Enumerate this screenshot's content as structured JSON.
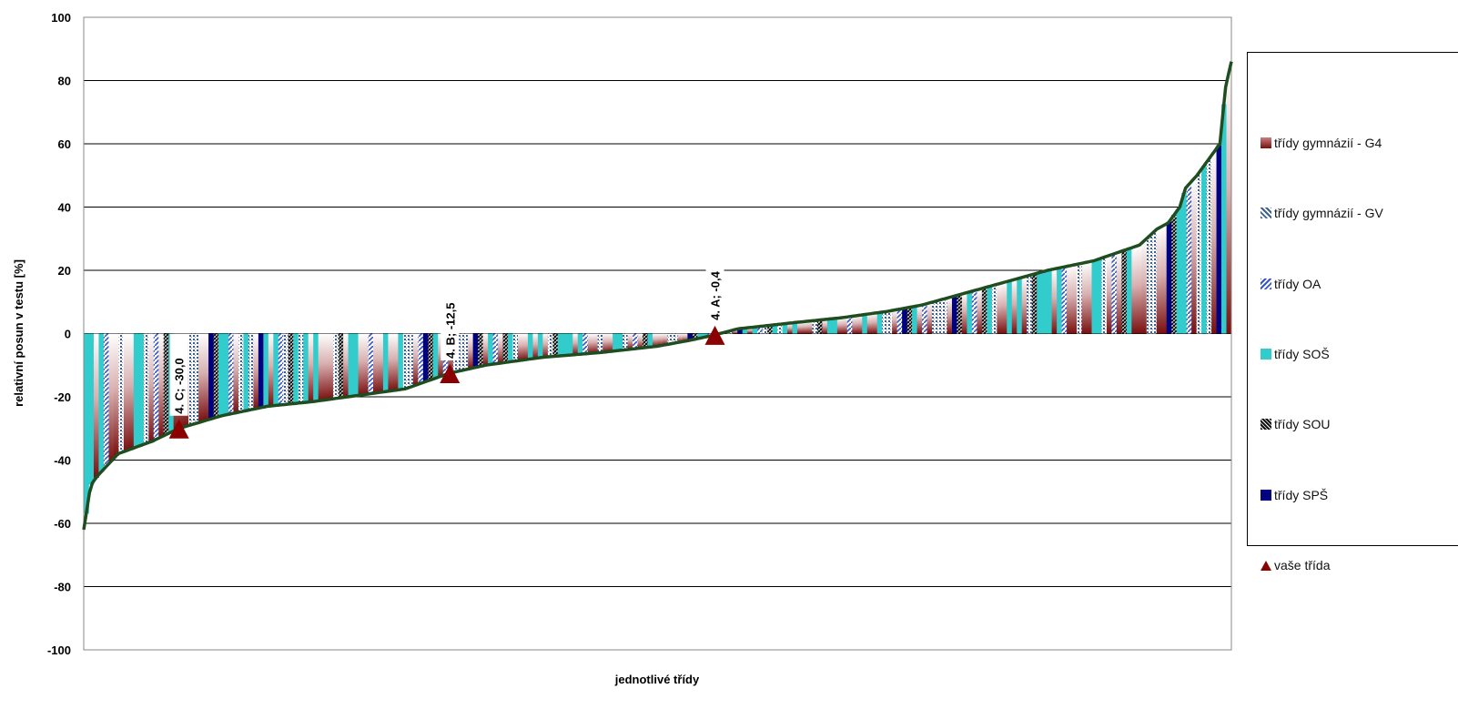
{
  "chart_data": {
    "type": "bar",
    "ylabel": "relativní posun v testu [%]",
    "xlabel": "jednotlivé třídy",
    "ylim": [
      -100,
      100
    ],
    "yticks": [
      "100",
      "80",
      "60",
      "40",
      "20",
      "0",
      "-20",
      "-40",
      "-60",
      "-80",
      "-100"
    ],
    "grid": true,
    "legend_position": "right",
    "bar_count": 230,
    "curve_anchors": [
      [
        0,
        -62
      ],
      [
        0.006,
        -48
      ],
      [
        0.012,
        -45
      ],
      [
        0.03,
        -38
      ],
      [
        0.06,
        -34
      ],
      [
        0.083,
        -30
      ],
      [
        0.12,
        -26
      ],
      [
        0.16,
        -23
      ],
      [
        0.2,
        -21.5
      ],
      [
        0.25,
        -19
      ],
      [
        0.28,
        -17.5
      ],
      [
        0.319,
        -12.5
      ],
      [
        0.35,
        -10
      ],
      [
        0.4,
        -7.5
      ],
      [
        0.45,
        -6
      ],
      [
        0.5,
        -4
      ],
      [
        0.53,
        -2
      ],
      [
        0.55,
        -0.4
      ],
      [
        0.57,
        1.5
      ],
      [
        0.62,
        3.5
      ],
      [
        0.66,
        5
      ],
      [
        0.7,
        7
      ],
      [
        0.73,
        9
      ],
      [
        0.76,
        12
      ],
      [
        0.8,
        16
      ],
      [
        0.84,
        20
      ],
      [
        0.88,
        23
      ],
      [
        0.92,
        28
      ],
      [
        0.935,
        33
      ],
      [
        0.945,
        35
      ],
      [
        0.955,
        40
      ],
      [
        0.96,
        46
      ],
      [
        0.97,
        50
      ],
      [
        0.98,
        55
      ],
      [
        0.99,
        60
      ],
      [
        0.995,
        78
      ],
      [
        1,
        86
      ]
    ],
    "series": [
      {
        "name": "třídy gymnázií - G4",
        "key": "g4"
      },
      {
        "name": "třídy gymnázií - GV",
        "key": "gv"
      },
      {
        "name": "třídy OA",
        "key": "oa"
      },
      {
        "name": "třídy SOŠ",
        "key": "sos"
      },
      {
        "name": "třídy SOU",
        "key": "sou"
      },
      {
        "name": "třídy SPŠ",
        "key": "sps"
      },
      {
        "name": "vaše třída",
        "key": "vase"
      }
    ],
    "highlighted": [
      {
        "label": "4. C; -30,0",
        "position": 0.083,
        "value": -30.0
      },
      {
        "label": "4. B; -12,5",
        "position": 0.319,
        "value": -12.5
      },
      {
        "label": "4. A; -0,4",
        "position": 0.55,
        "value": -0.4
      }
    ]
  },
  "colors": {
    "g4": "#8b1a1a",
    "gv": "#3b5f8f",
    "oa": "#3355cc",
    "sos": "#33cccc",
    "sou": "#111111",
    "sps": "#000080",
    "vase": "#8b0000",
    "curve": "#1f4d1f",
    "grid": "#000000"
  }
}
